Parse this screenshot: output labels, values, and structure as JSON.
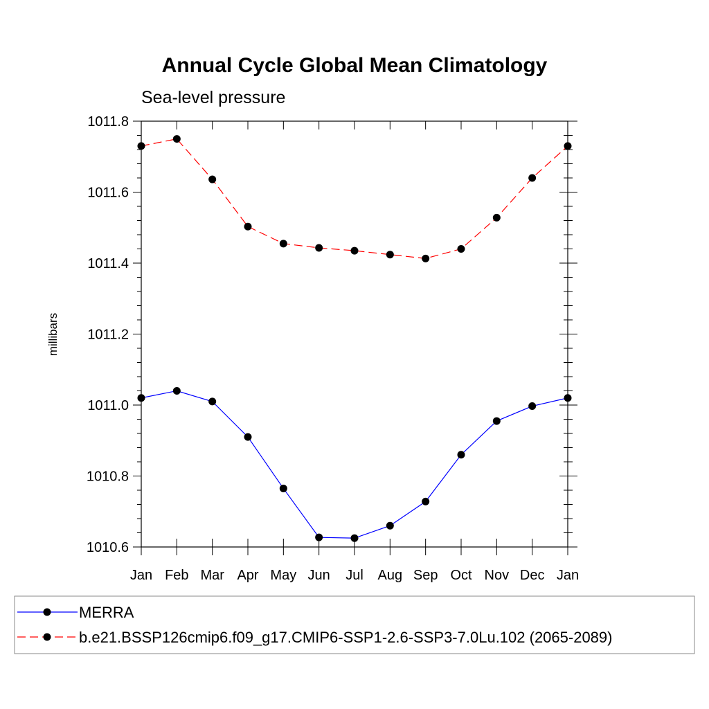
{
  "chart_data": {
    "type": "line",
    "title": "Annual Cycle Global Mean Climatology",
    "subtitle": "Sea-level pressure",
    "xlabel": "",
    "ylabel": "millibars",
    "categories": [
      "Jan",
      "Feb",
      "Mar",
      "Apr",
      "May",
      "Jun",
      "Jul",
      "Aug",
      "Sep",
      "Oct",
      "Nov",
      "Dec",
      "Jan"
    ],
    "ylim": [
      1010.6,
      1011.8
    ],
    "yticks": [
      1010.6,
      1010.8,
      1011.0,
      1011.2,
      1011.4,
      1011.6,
      1011.8
    ],
    "ytick_labels": [
      "1010.6",
      "1010.8",
      "1011.0",
      "1011.2",
      "1011.4",
      "1011.6",
      "1011.8"
    ],
    "grid": false,
    "legend_position": "bottom",
    "series": [
      {
        "name": "MERRA",
        "color": "#0000ff",
        "line_style": "solid",
        "marker": "filled-circle",
        "values": [
          1011.02,
          1011.04,
          1011.01,
          1010.91,
          1010.765,
          1010.627,
          1010.625,
          1010.66,
          1010.728,
          1010.86,
          1010.955,
          1010.997,
          1011.02
        ]
      },
      {
        "name": "b.e21.BSSP126cmip6.f09_g17.CMIP6-SSP1-2.6-SSP3-7.0Lu.102 (2065-2089)",
        "color": "#ff0000",
        "line_style": "dashed",
        "marker": "filled-circle",
        "values": [
          1011.73,
          1011.75,
          1011.636,
          1011.503,
          1011.455,
          1011.443,
          1011.435,
          1011.424,
          1011.413,
          1011.44,
          1011.528,
          1011.64,
          1011.73
        ]
      }
    ]
  }
}
